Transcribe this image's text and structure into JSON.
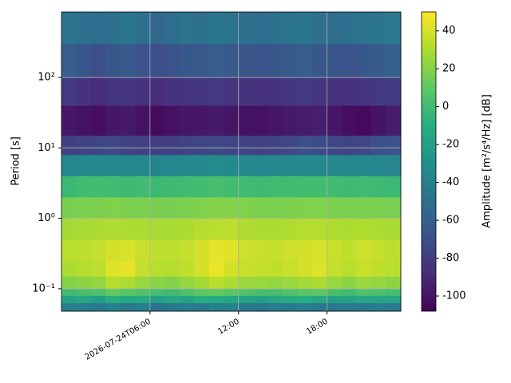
{
  "chart_data": {
    "type": "heatmap",
    "ylabel": "Period [s]",
    "colorbar_label": "Amplitude [m²/s⁴/Hz] [dB]",
    "colormap": "viridis",
    "grid": true,
    "yscale": "log",
    "x": [
      0,
      1,
      2,
      3,
      4,
      5,
      6,
      7,
      8,
      9,
      10,
      11,
      12,
      13,
      14,
      15,
      16,
      17,
      18,
      19,
      20,
      21,
      22,
      23
    ],
    "y": [
      0.048,
      0.063,
      0.08,
      0.1,
      0.15,
      0.25,
      0.5,
      1,
      2,
      4,
      8,
      15,
      40,
      100,
      300,
      850
    ],
    "xlim": [
      0,
      23
    ],
    "ylim": [
      0.048,
      850
    ],
    "clim": [
      -108,
      50
    ],
    "xticks": [
      {
        "value": 6,
        "label": "2026-07-24T06:00"
      },
      {
        "value": 12,
        "label": "12:00"
      },
      {
        "value": 18,
        "label": "18:00"
      }
    ],
    "yticks": [
      {
        "value": 0.1,
        "label": "10⁻¹"
      },
      {
        "value": 1,
        "label": "10⁰"
      },
      {
        "value": 10,
        "label": "10¹"
      },
      {
        "value": 100,
        "label": "10²"
      }
    ],
    "cticks": [
      -100,
      -80,
      -60,
      -40,
      -20,
      0,
      20,
      40
    ],
    "values": [
      [
        -40,
        -42,
        -45,
        -38,
        -45,
        -40,
        -48,
        -45,
        -42,
        -45,
        -40,
        -38,
        -45,
        -47,
        -42,
        -45,
        -40,
        -44,
        -46,
        -43,
        -45,
        -42,
        -44
      ],
      [
        -18,
        -15,
        -20,
        -10,
        -15,
        -12,
        -20,
        -15,
        -18,
        -10,
        -12,
        -15,
        -18,
        -20,
        -15,
        -12,
        -10,
        -15,
        -20,
        -18,
        -15,
        -17,
        -16
      ],
      [
        0,
        3,
        5,
        12,
        8,
        5,
        2,
        0,
        5,
        10,
        12,
        8,
        5,
        3,
        2,
        5,
        8,
        10,
        3,
        0,
        5,
        4,
        2
      ],
      [
        20,
        22,
        24,
        32,
        30,
        25,
        22,
        20,
        24,
        28,
        33,
        30,
        26,
        25,
        24,
        26,
        28,
        30,
        25,
        22,
        26,
        24,
        22
      ],
      [
        30,
        32,
        34,
        42,
        44,
        36,
        33,
        32,
        35,
        40,
        45,
        40,
        37,
        36,
        35,
        37,
        40,
        42,
        36,
        33,
        37,
        35,
        33
      ],
      [
        33,
        34,
        36,
        40,
        41,
        37,
        35,
        34,
        36,
        40,
        44,
        43,
        38,
        37,
        36,
        38,
        40,
        41,
        37,
        35,
        38,
        36,
        34
      ],
      [
        28,
        29,
        30,
        31,
        30,
        30,
        29,
        29,
        30,
        32,
        33,
        34,
        31,
        30,
        30,
        31,
        32,
        32,
        31,
        30,
        31,
        30,
        29
      ],
      [
        17,
        18,
        18,
        19,
        18,
        18,
        17,
        17,
        18,
        19,
        20,
        20,
        19,
        18,
        18,
        18,
        19,
        19,
        18,
        18,
        18,
        18,
        17
      ],
      [
        -2,
        0,
        1,
        0,
        -1,
        0,
        -2,
        -1,
        0,
        1,
        2,
        1,
        0,
        -1,
        0,
        0,
        1,
        1,
        0,
        -1,
        0,
        -1,
        -2
      ],
      [
        -36,
        -35,
        -34,
        -35,
        -36,
        -35,
        -37,
        -36,
        -35,
        -34,
        -33,
        -34,
        -35,
        -36,
        -35,
        -35,
        -34,
        -34,
        -35,
        -36,
        -35,
        -36,
        -37
      ],
      [
        -78,
        -76,
        -75,
        -74,
        -76,
        -77,
        -79,
        -78,
        -76,
        -75,
        -74,
        -75,
        -76,
        -77,
        -76,
        -74,
        -70,
        -72,
        -75,
        -76,
        -74,
        -70,
        -68
      ],
      [
        -98,
        -100,
        -102,
        -98,
        -97,
        -100,
        -103,
        -101,
        -99,
        -98,
        -97,
        -99,
        -100,
        -101,
        -99,
        -97,
        -96,
        -95,
        -98,
        -102,
        -104,
        -100,
        -96
      ],
      [
        -82,
        -85,
        -88,
        -84,
        -83,
        -86,
        -88,
        -86,
        -84,
        -83,
        -82,
        -84,
        -85,
        -86,
        -85,
        -83,
        -82,
        -84,
        -85,
        -86,
        -84,
        -82,
        -80
      ],
      [
        -62,
        -66,
        -70,
        -66,
        -64,
        -68,
        -70,
        -67,
        -65,
        -64,
        -62,
        -64,
        -66,
        -68,
        -66,
        -64,
        -62,
        -65,
        -66,
        -68,
        -65,
        -63,
        -60
      ],
      [
        -48,
        -50,
        -52,
        -50,
        -46,
        -50,
        -54,
        -52,
        -48,
        -50,
        -46,
        -48,
        -50,
        -52,
        -50,
        -48,
        -46,
        -50,
        -52,
        -50,
        -48,
        -47,
        -45
      ]
    ]
  }
}
